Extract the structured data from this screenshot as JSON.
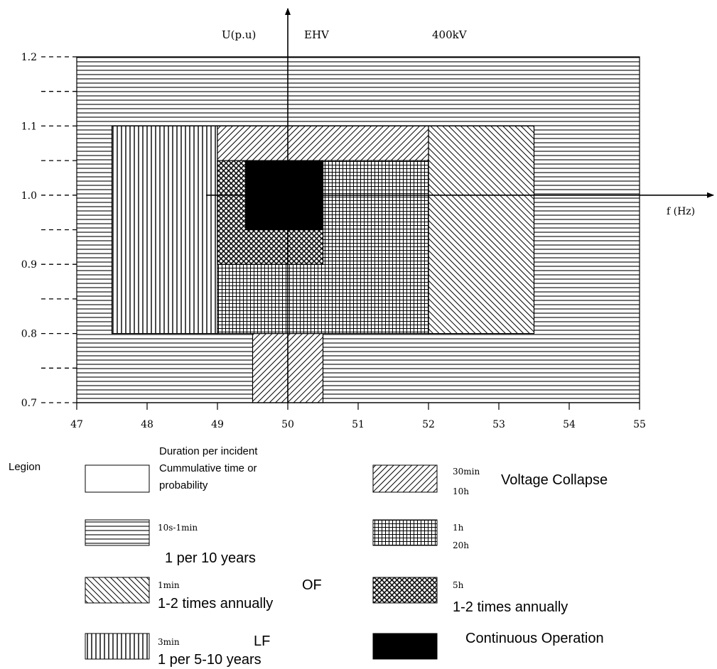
{
  "chart_data": {
    "type": "table",
    "header": {
      "ylabel": "U(p.u)",
      "level": "EHV",
      "voltage": "400kV",
      "xlabel": "f (Hz)"
    },
    "x_ticks": [
      "47",
      "48",
      "49",
      "50",
      "51",
      "52",
      "53",
      "54",
      "55"
    ],
    "y_ticks": [
      "1.2",
      "1.1",
      "1.0",
      "0.9",
      "0.8",
      "0.7"
    ],
    "xlim": [
      47,
      55
    ],
    "ylim": [
      0.7,
      1.2
    ],
    "axis_cross": {
      "f": 50,
      "U": 1.0
    },
    "regions": [
      {
        "id": "r-10s",
        "pattern": "horizontal",
        "f": [
          47,
          55
        ],
        "u": [
          0.7,
          1.2
        ]
      },
      {
        "id": "r-3min",
        "pattern": "vertical",
        "f": [
          47.5,
          49
        ],
        "u": [
          0.8,
          1.1
        ]
      },
      {
        "id": "r-1min-right",
        "pattern": "backdiag",
        "f": [
          52,
          53.5
        ],
        "u": [
          0.8,
          1.1
        ]
      },
      {
        "id": "r-30min-top",
        "pattern": "diag",
        "f": [
          49,
          52
        ],
        "u": [
          1.05,
          1.1
        ]
      },
      {
        "id": "r-30min-bottom",
        "pattern": "diag",
        "f": [
          49.5,
          50.5
        ],
        "u": [
          0.7,
          0.8
        ]
      },
      {
        "id": "r-1h",
        "pattern": "grid",
        "f": [
          49,
          52
        ],
        "u": [
          0.8,
          1.05
        ]
      },
      {
        "id": "r-5h",
        "pattern": "checker",
        "f": [
          49,
          50.5
        ],
        "u": [
          0.9,
          1.05
        ]
      },
      {
        "id": "r-continuous",
        "pattern": "solid",
        "f": [
          49.4,
          50.5
        ],
        "u": [
          0.95,
          1.05
        ]
      }
    ],
    "legend": {
      "title": "Legion",
      "header": {
        "line1": "Duration per incident",
        "line2": "Cummulative time or",
        "line3": "probability"
      },
      "items": [
        {
          "pattern": "horizontal",
          "duration": "10s-1min",
          "note": "1 per 10 years"
        },
        {
          "pattern": "backdiag",
          "duration": "1min",
          "tag": "OF",
          "note": "1-2 times annually"
        },
        {
          "pattern": "vertical",
          "duration": "3min",
          "tag": "LF",
          "note": "1 per 5-10 years"
        },
        {
          "pattern": "diag",
          "duration": "30min",
          "tag": "Voltage Collapse",
          "note": "10h"
        },
        {
          "pattern": "grid",
          "duration": "1h",
          "note": "20h"
        },
        {
          "pattern": "checker",
          "duration": "5h",
          "note": "1-2 times annually"
        },
        {
          "pattern": "solid",
          "duration": "",
          "note": "Continuous Operation"
        }
      ]
    }
  }
}
